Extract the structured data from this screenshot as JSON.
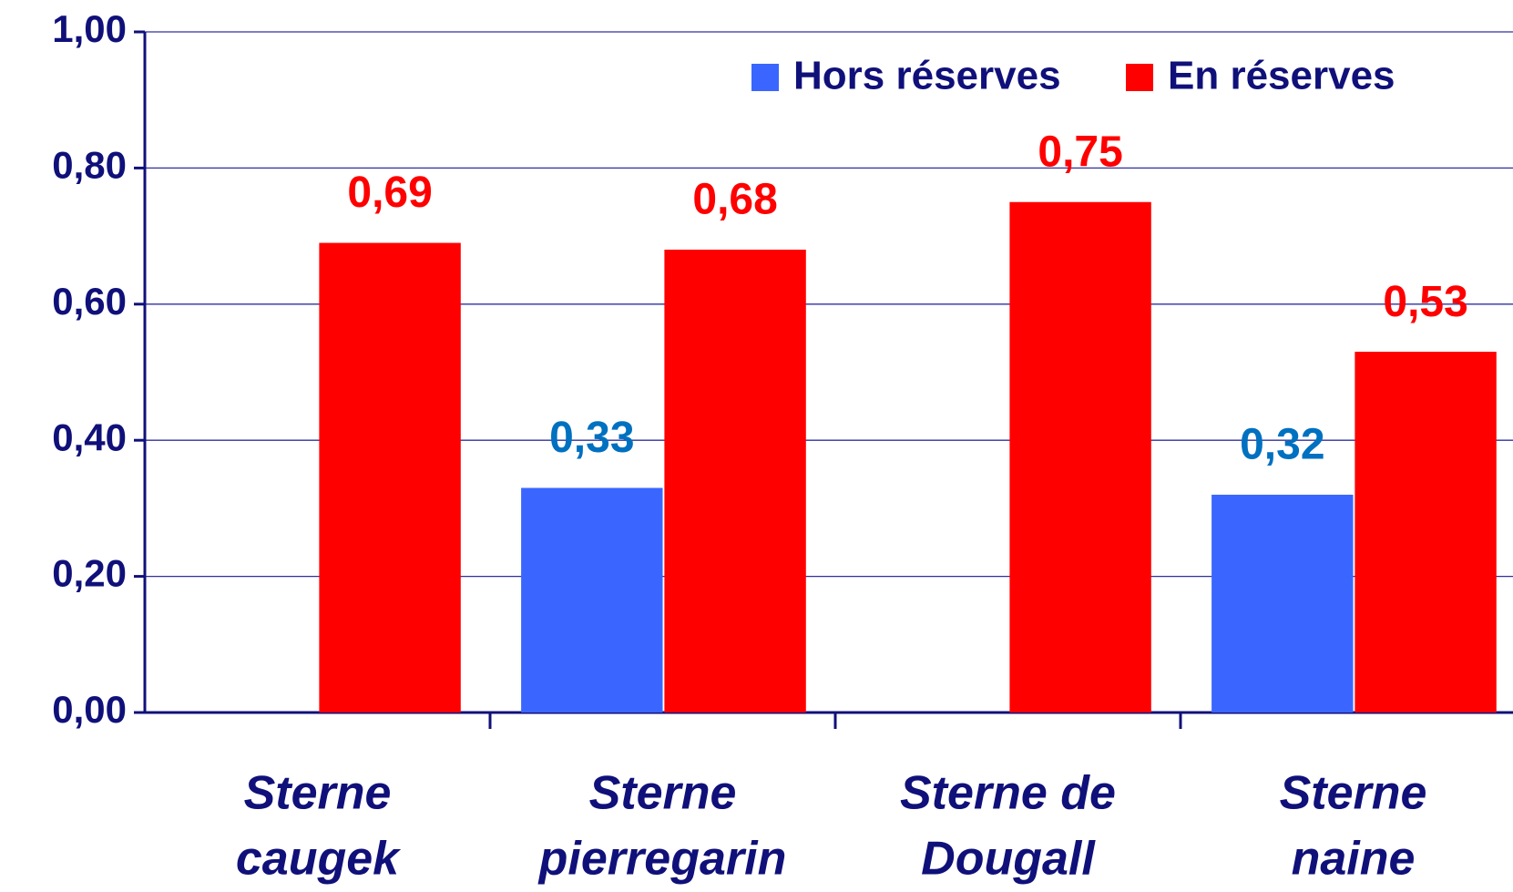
{
  "chart_data": {
    "type": "bar",
    "categories": [
      [
        "Sterne",
        "caugek"
      ],
      [
        "Sterne",
        "pierregarin"
      ],
      [
        "Sterne de",
        "Dougall"
      ],
      [
        "Sterne",
        "naine"
      ]
    ],
    "series": [
      {
        "name": "Hors réserves",
        "color": "#3a66ff",
        "label_color": "#0070c0",
        "values": [
          null,
          0.33,
          null,
          0.32
        ],
        "value_labels": [
          null,
          "0,33",
          null,
          "0,32"
        ]
      },
      {
        "name": "En réserves",
        "color": "#ff0000",
        "label_color": "#ff0000",
        "values": [
          0.69,
          0.68,
          0.75,
          0.53
        ],
        "value_labels": [
          "0,69",
          "0,68",
          "0,75",
          "0,53"
        ]
      }
    ],
    "ylim": [
      0,
      1
    ],
    "yticks": [
      {
        "value": 0,
        "label": "0,00"
      },
      {
        "value": 0.2,
        "label": "0,20"
      },
      {
        "value": 0.4,
        "label": "0,40"
      },
      {
        "value": 0.6,
        "label": "0,60"
      },
      {
        "value": 0.8,
        "label": "0,80"
      },
      {
        "value": 1,
        "label": "1,00"
      }
    ],
    "grid": true
  }
}
